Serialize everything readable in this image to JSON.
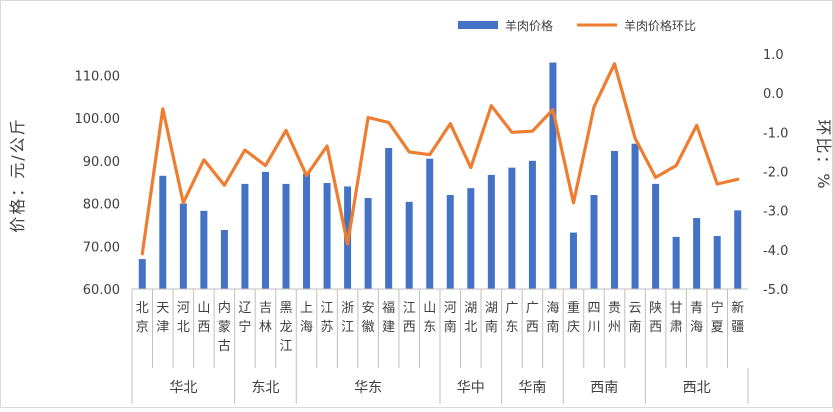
{
  "chart_data": {
    "type": "bar",
    "categories": [
      "北京",
      "天津",
      "河北",
      "山西",
      "内蒙古",
      "辽宁",
      "吉林",
      "黑龙江",
      "上海",
      "江苏",
      "浙江",
      "安徽",
      "福建",
      "江西",
      "山东",
      "河南",
      "湖北",
      "湖南",
      "广东",
      "广西",
      "海南",
      "重庆",
      "四川",
      "贵州",
      "云南",
      "陕西",
      "甘肃",
      "青海",
      "宁夏",
      "新疆"
    ],
    "region_groups": [
      {
        "name": "华北",
        "count": 5
      },
      {
        "name": "东北",
        "count": 3
      },
      {
        "name": "华东",
        "count": 7
      },
      {
        "name": "华中",
        "count": 3
      },
      {
        "name": "华南",
        "count": 3
      },
      {
        "name": "西南",
        "count": 4
      },
      {
        "name": "西北",
        "count": 5
      }
    ],
    "series": [
      {
        "name": "羊肉价格",
        "type": "bar",
        "axis": "left",
        "color": "#4472C4",
        "values": [
          67.0,
          86.5,
          80.0,
          78.3,
          73.8,
          84.6,
          87.4,
          84.6,
          87.0,
          84.8,
          84.0,
          81.3,
          93.0,
          80.4,
          90.5,
          82.0,
          83.6,
          86.7,
          88.4,
          90.0,
          113.0,
          73.2,
          82.0,
          92.3,
          94.0,
          84.6,
          72.2,
          76.6,
          72.4,
          78.4
        ]
      },
      {
        "name": "羊肉价格环比",
        "type": "line",
        "axis": "right",
        "color": "#ED7D31",
        "values": [
          -4.1,
          -0.4,
          -2.8,
          -1.7,
          -2.35,
          -1.45,
          -1.85,
          -0.95,
          -2.1,
          -1.35,
          -3.85,
          -0.62,
          -0.75,
          -1.5,
          -1.57,
          -0.78,
          -1.9,
          -0.32,
          -1.0,
          -0.97,
          -0.42,
          -2.8,
          -0.35,
          0.75,
          -1.15,
          -2.15,
          -1.85,
          -0.82,
          -2.32,
          -2.2
        ]
      }
    ],
    "ylabel": "价格：元/公斤",
    "y2label": "环比：%",
    "ylim": [
      60,
      115
    ],
    "yticks": [
      "60.00",
      "70.00",
      "80.00",
      "90.00",
      "100.00",
      "110.00"
    ],
    "y2lim": [
      -5,
      1
    ],
    "y2ticks": [
      "1.0",
      "0.0",
      "-1.0",
      "-2.0",
      "-3.0",
      "-4.0",
      "-5.0"
    ],
    "legend_position": "top-center",
    "grid": false
  }
}
